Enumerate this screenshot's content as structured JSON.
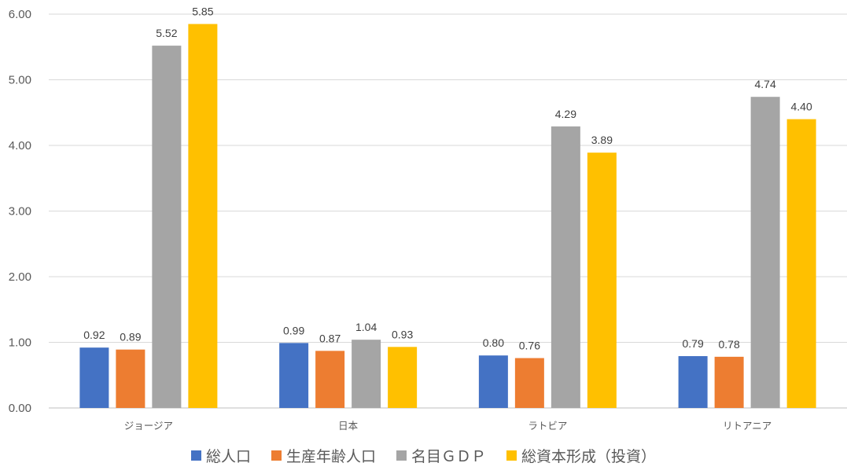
{
  "chart_data": {
    "type": "bar",
    "title": "",
    "xlabel": "",
    "ylabel": "",
    "ylim": [
      0,
      6
    ],
    "yticks": [
      "0.00",
      "1.00",
      "2.00",
      "3.00",
      "4.00",
      "5.00",
      "6.00"
    ],
    "grid": true,
    "legend_position": "bottom",
    "categories": [
      "ジョージア",
      "日本",
      "ラトビア",
      "リトアニア"
    ],
    "series": [
      {
        "name": "総人口",
        "color": "#4472C4",
        "values": [
          0.92,
          0.99,
          0.8,
          0.79
        ],
        "labels": [
          "0.92",
          "0.99",
          "0.80",
          "0.79"
        ]
      },
      {
        "name": "生産年齢人口",
        "color": "#ED7D31",
        "values": [
          0.89,
          0.87,
          0.76,
          0.78
        ],
        "labels": [
          "0.89",
          "0.87",
          "0.76",
          "0.78"
        ]
      },
      {
        "name": "名目ＧＤＰ",
        "color": "#A5A5A5",
        "values": [
          5.52,
          1.04,
          4.29,
          4.74
        ],
        "labels": [
          "5.52",
          "1.04",
          "4.29",
          "4.74"
        ]
      },
      {
        "name": "総資本形成（投資）",
        "color": "#FFC000",
        "values": [
          5.85,
          0.93,
          3.89,
          4.4
        ],
        "labels": [
          "5.85",
          "0.93",
          "3.89",
          "4.40"
        ]
      }
    ]
  }
}
